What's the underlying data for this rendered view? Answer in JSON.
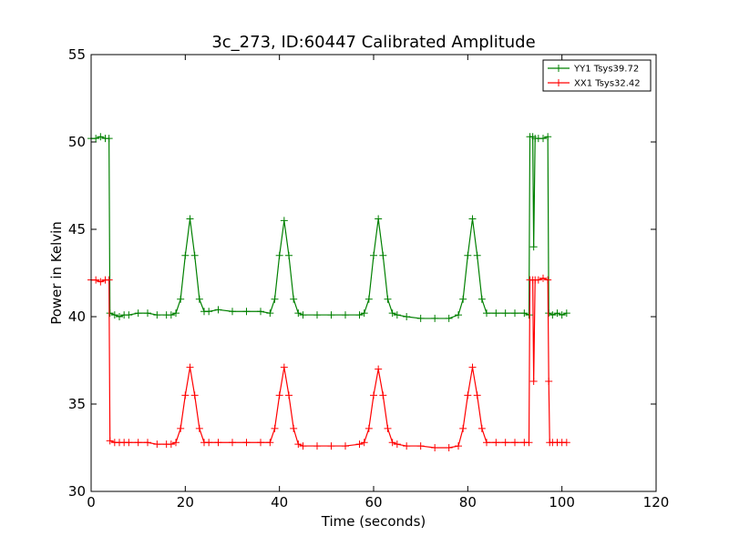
{
  "chart_data": {
    "type": "line",
    "title": "3c_273, ID:60447 Calibrated Amplitude",
    "xlabel": "Time (seconds)",
    "ylabel": "Power in Kelvin",
    "xlim": [
      0,
      120
    ],
    "ylim": [
      30,
      55
    ],
    "xticks": [
      0,
      20,
      40,
      60,
      80,
      100,
      120
    ],
    "yticks": [
      30,
      35,
      40,
      45,
      50,
      55
    ],
    "grid": false,
    "legend_position": "top-right",
    "markers": "plus",
    "series": [
      {
        "name": "YY1 Tsys39.72",
        "color": "#008000",
        "points": [
          [
            0,
            50.2
          ],
          [
            1,
            50.2
          ],
          [
            2,
            50.3
          ],
          [
            3,
            50.2
          ],
          [
            3.8,
            50.2
          ],
          [
            4,
            40.2
          ],
          [
            5,
            40.1
          ],
          [
            6,
            40.0
          ],
          [
            7,
            40.1
          ],
          [
            8,
            40.1
          ],
          [
            10,
            40.2
          ],
          [
            12,
            40.2
          ],
          [
            14,
            40.1
          ],
          [
            16,
            40.1
          ],
          [
            17,
            40.1
          ],
          [
            18,
            40.2
          ],
          [
            19,
            41.0
          ],
          [
            20,
            43.5
          ],
          [
            21,
            45.6
          ],
          [
            22,
            43.5
          ],
          [
            23,
            41.0
          ],
          [
            24,
            40.3
          ],
          [
            25,
            40.3
          ],
          [
            27,
            40.4
          ],
          [
            30,
            40.3
          ],
          [
            33,
            40.3
          ],
          [
            36,
            40.3
          ],
          [
            38,
            40.2
          ],
          [
            39,
            41.0
          ],
          [
            40,
            43.5
          ],
          [
            41,
            45.5
          ],
          [
            42,
            43.5
          ],
          [
            43,
            41.0
          ],
          [
            44,
            40.2
          ],
          [
            45,
            40.1
          ],
          [
            48,
            40.1
          ],
          [
            51,
            40.1
          ],
          [
            54,
            40.1
          ],
          [
            57,
            40.1
          ],
          [
            58,
            40.2
          ],
          [
            59,
            41.0
          ],
          [
            60,
            43.5
          ],
          [
            61,
            45.6
          ],
          [
            62,
            43.5
          ],
          [
            63,
            41.0
          ],
          [
            64,
            40.2
          ],
          [
            65,
            40.1
          ],
          [
            67,
            40.0
          ],
          [
            70,
            39.9
          ],
          [
            73,
            39.9
          ],
          [
            76,
            39.9
          ],
          [
            78,
            40.1
          ],
          [
            79,
            41.0
          ],
          [
            80,
            43.5
          ],
          [
            81,
            45.6
          ],
          [
            82,
            43.5
          ],
          [
            83,
            41.0
          ],
          [
            84,
            40.2
          ],
          [
            86,
            40.2
          ],
          [
            88,
            40.2
          ],
          [
            90,
            40.2
          ],
          [
            92,
            40.2
          ],
          [
            93,
            40.1
          ],
          [
            93.2,
            50.3
          ],
          [
            93.8,
            50.3
          ],
          [
            94,
            44.0
          ],
          [
            94.3,
            50.2
          ],
          [
            95,
            50.2
          ],
          [
            96,
            50.2
          ],
          [
            97,
            50.3
          ],
          [
            97.2,
            40.2
          ],
          [
            98,
            40.1
          ],
          [
            99,
            40.2
          ],
          [
            100,
            40.1
          ],
          [
            101,
            40.2
          ]
        ]
      },
      {
        "name": "XX1 Tsys32.42",
        "color": "#ff0000",
        "points": [
          [
            0,
            42.1
          ],
          [
            1,
            42.1
          ],
          [
            2,
            42.0
          ],
          [
            3,
            42.1
          ],
          [
            3.8,
            42.1
          ],
          [
            4,
            32.9
          ],
          [
            5,
            32.8
          ],
          [
            6,
            32.8
          ],
          [
            7,
            32.8
          ],
          [
            8,
            32.8
          ],
          [
            10,
            32.8
          ],
          [
            12,
            32.8
          ],
          [
            14,
            32.7
          ],
          [
            16,
            32.7
          ],
          [
            17,
            32.7
          ],
          [
            18,
            32.8
          ],
          [
            19,
            33.6
          ],
          [
            20,
            35.5
          ],
          [
            21,
            37.1
          ],
          [
            22,
            35.5
          ],
          [
            23,
            33.6
          ],
          [
            24,
            32.8
          ],
          [
            25,
            32.8
          ],
          [
            27,
            32.8
          ],
          [
            30,
            32.8
          ],
          [
            33,
            32.8
          ],
          [
            36,
            32.8
          ],
          [
            38,
            32.8
          ],
          [
            39,
            33.6
          ],
          [
            40,
            35.5
          ],
          [
            41,
            37.1
          ],
          [
            42,
            35.5
          ],
          [
            43,
            33.6
          ],
          [
            44,
            32.7
          ],
          [
            45,
            32.6
          ],
          [
            48,
            32.6
          ],
          [
            51,
            32.6
          ],
          [
            54,
            32.6
          ],
          [
            57,
            32.7
          ],
          [
            58,
            32.8
          ],
          [
            59,
            33.6
          ],
          [
            60,
            35.5
          ],
          [
            61,
            37.0
          ],
          [
            62,
            35.5
          ],
          [
            63,
            33.6
          ],
          [
            64,
            32.8
          ],
          [
            65,
            32.7
          ],
          [
            67,
            32.6
          ],
          [
            70,
            32.6
          ],
          [
            73,
            32.5
          ],
          [
            76,
            32.5
          ],
          [
            78,
            32.6
          ],
          [
            79,
            33.6
          ],
          [
            80,
            35.5
          ],
          [
            81,
            37.1
          ],
          [
            82,
            35.5
          ],
          [
            83,
            33.6
          ],
          [
            84,
            32.8
          ],
          [
            86,
            32.8
          ],
          [
            88,
            32.8
          ],
          [
            90,
            32.8
          ],
          [
            92,
            32.8
          ],
          [
            93,
            32.8
          ],
          [
            93.2,
            42.1
          ],
          [
            93.8,
            42.1
          ],
          [
            94,
            36.3
          ],
          [
            94.3,
            42.1
          ],
          [
            95,
            42.1
          ],
          [
            96,
            42.2
          ],
          [
            97,
            42.1
          ],
          [
            97.2,
            36.3
          ],
          [
            97.4,
            32.8
          ],
          [
            98,
            32.8
          ],
          [
            99,
            32.8
          ],
          [
            100,
            32.8
          ],
          [
            101,
            32.8
          ]
        ]
      }
    ]
  }
}
